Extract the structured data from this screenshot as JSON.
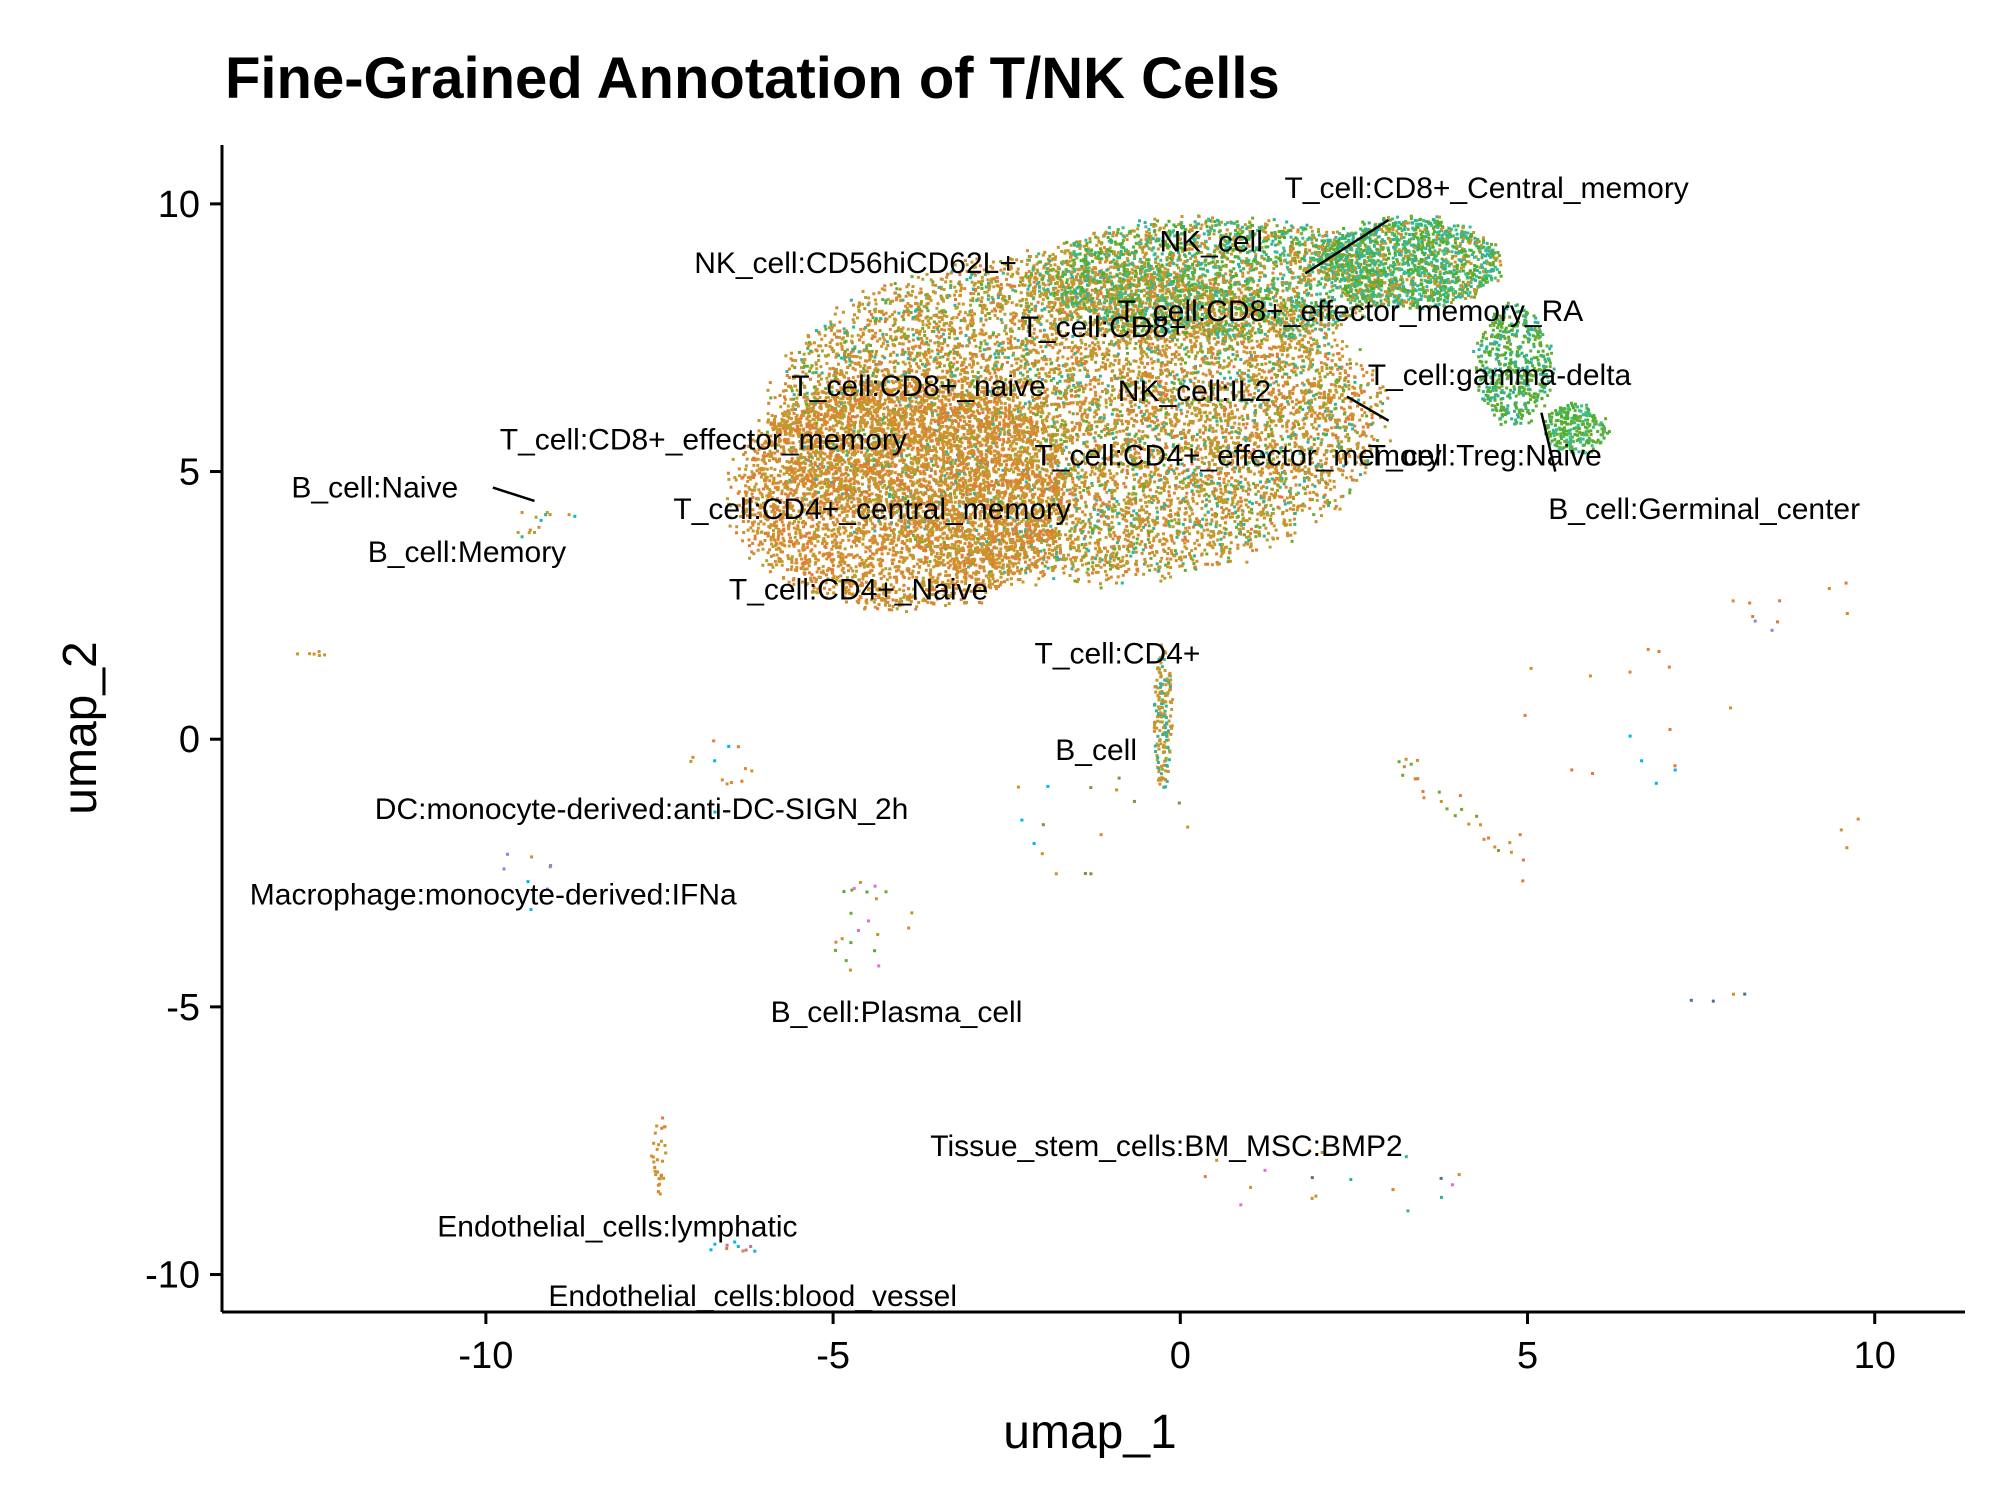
{
  "chart_data": {
    "type": "scatter",
    "title": "Fine-Grained Annotation of T/NK Cells",
    "xlabel": "umap_1",
    "ylabel": "umap_2",
    "xlim": [
      -13.8,
      11.3
    ],
    "ylim": [
      -10.7,
      11.1
    ],
    "x_ticks": [
      -10,
      -5,
      0,
      5,
      10
    ],
    "y_ticks": [
      -10,
      -5,
      0,
      5,
      10
    ],
    "grid": false,
    "legend": "none",
    "palette": [
      "#d98a2b",
      "#c9962a",
      "#b8a02e",
      "#e07b39",
      "#2fb39a",
      "#3bbf8a",
      "#6aab2f",
      "#4daf2c",
      "#00b7e8",
      "#7b8be8",
      "#e86ad6",
      "#d46a9a",
      "#8c8c3a",
      "#4f6f8f"
    ],
    "labels": [
      {
        "text": "T_cell:CD8+_Central_memory",
        "x": 1.5,
        "y": 10.3
      },
      {
        "text": "NK_cell",
        "x": -0.3,
        "y": 9.3
      },
      {
        "text": "NK_cell:CD56hiCD62L+",
        "x": -7.0,
        "y": 8.9
      },
      {
        "text": "T_cell:CD8+_effector_memory_RA",
        "x": -0.9,
        "y": 8.0
      },
      {
        "text": "T_cell:CD8+",
        "x": -2.3,
        "y": 7.7
      },
      {
        "text": "T_cell:gamma-delta",
        "x": 2.7,
        "y": 6.8
      },
      {
        "text": "T_cell:CD8+_naive",
        "x": -5.6,
        "y": 6.6
      },
      {
        "text": "NK_cell:IL2",
        "x": -0.9,
        "y": 6.5
      },
      {
        "text": "T_cell:CD8+_effector_memory",
        "x": -9.8,
        "y": 5.6
      },
      {
        "text": "T_cell:CD4+_effector_memory",
        "x": -2.1,
        "y": 5.3
      },
      {
        "text": "T_cell:Treg:Naive",
        "x": 2.7,
        "y": 5.3
      },
      {
        "text": "B_cell:Naive",
        "x": -12.8,
        "y": 4.7
      },
      {
        "text": "T_cell:CD4+_central_memory",
        "x": -7.3,
        "y": 4.3
      },
      {
        "text": "B_cell:Germinal_center",
        "x": 5.3,
        "y": 4.3
      },
      {
        "text": "B_cell:Memory",
        "x": -11.7,
        "y": 3.5
      },
      {
        "text": "T_cell:CD4+_Naive",
        "x": -6.5,
        "y": 2.8
      },
      {
        "text": "T_cell:CD4+",
        "x": -2.1,
        "y": 1.6
      },
      {
        "text": "B_cell",
        "x": -1.8,
        "y": -0.2
      },
      {
        "text": "DC:monocyte-derived:anti-DC-SIGN_2h",
        "x": -11.6,
        "y": -1.3
      },
      {
        "text": "Macrophage:monocyte-derived:IFNa",
        "x": -13.4,
        "y": -2.9
      },
      {
        "text": "B_cell:Plasma_cell",
        "x": -5.9,
        "y": -5.1
      },
      {
        "text": "Tissue_stem_cells:BM_MSC:BMP2",
        "x": -3.6,
        "y": -7.6
      },
      {
        "text": "Endothelial_cells:lymphatic",
        "x": -10.7,
        "y": -9.1
      },
      {
        "text": "Endothelial_cells:blood_vessel",
        "x": -9.1,
        "y": -10.4
      }
    ],
    "leaders": [
      [
        1.8,
        8.7,
        3.0,
        9.7
      ],
      [
        -9.9,
        4.7,
        -9.3,
        4.45
      ],
      [
        2.4,
        6.4,
        3.0,
        5.95
      ],
      [
        5.2,
        6.1,
        5.4,
        5.0
      ]
    ],
    "clusters": [
      {
        "name": "main_body",
        "type": "ellipse",
        "cx": -1.5,
        "cy": 6.0,
        "rx": 4.6,
        "ry": 3.2,
        "n": 9000,
        "colors": [
          0,
          1,
          2,
          3,
          1,
          0,
          2,
          4,
          6
        ]
      },
      {
        "name": "main_left",
        "type": "ellipse",
        "cx": -4.0,
        "cy": 4.6,
        "rx": 2.6,
        "ry": 2.3,
        "n": 4000,
        "colors": [
          0,
          3,
          1,
          0,
          2
        ]
      },
      {
        "name": "main_top",
        "type": "ellipse",
        "cx": 0.5,
        "cy": 8.6,
        "rx": 2.8,
        "ry": 1.2,
        "n": 2600,
        "colors": [
          4,
          5,
          6,
          1,
          0,
          2,
          7
        ]
      },
      {
        "name": "upper_right_arm",
        "type": "ellipse",
        "cx": 3.3,
        "cy": 8.9,
        "rx": 1.4,
        "ry": 0.9,
        "n": 1400,
        "colors": [
          6,
          7,
          5,
          4,
          1
        ]
      },
      {
        "name": "arm_down",
        "type": "ellipse",
        "cx": 4.8,
        "cy": 7.0,
        "rx": 0.6,
        "ry": 1.2,
        "n": 500,
        "colors": [
          6,
          7,
          4
        ]
      },
      {
        "name": "arm_tip",
        "type": "ellipse",
        "cx": 5.7,
        "cy": 5.8,
        "rx": 0.5,
        "ry": 0.5,
        "n": 260,
        "colors": [
          7,
          6,
          5
        ]
      },
      {
        "name": "stalk",
        "type": "ellipse",
        "cx": -0.25,
        "cy": 0.4,
        "rx": 0.15,
        "ry": 1.4,
        "n": 180,
        "colors": [
          0,
          1,
          2,
          4
        ]
      },
      {
        "name": "bcell_naive",
        "type": "ellipse",
        "cx": -9.2,
        "cy": 4.0,
        "rx": 0.6,
        "ry": 0.3,
        "n": 14,
        "colors": [
          8,
          0,
          4,
          2
        ]
      },
      {
        "name": "left_far",
        "type": "ellipse",
        "cx": -12.5,
        "cy": 1.6,
        "rx": 0.3,
        "ry": 0.05,
        "n": 6,
        "colors": [
          0,
          1
        ]
      },
      {
        "name": "lower_left_chain",
        "type": "ellipse",
        "cx": -6.6,
        "cy": -0.6,
        "rx": 0.6,
        "ry": 0.9,
        "n": 14,
        "colors": [
          8,
          0,
          1,
          3
        ]
      },
      {
        "name": "macrophage",
        "type": "ellipse",
        "cx": -9.2,
        "cy": -2.5,
        "rx": 0.6,
        "ry": 0.8,
        "n": 8,
        "colors": [
          9,
          8,
          0
        ]
      },
      {
        "name": "plasma",
        "type": "ellipse",
        "cx": -4.6,
        "cy": -3.5,
        "rx": 0.8,
        "ry": 0.9,
        "n": 22,
        "colors": [
          7,
          0,
          10,
          1,
          6
        ]
      },
      {
        "name": "endo_lymph",
        "type": "ellipse",
        "cx": -7.5,
        "cy": -7.8,
        "rx": 0.12,
        "ry": 0.9,
        "n": 30,
        "colors": [
          0,
          1,
          3
        ]
      },
      {
        "name": "endo_blood",
        "type": "ellipse",
        "cx": -6.4,
        "cy": -9.5,
        "rx": 0.4,
        "ry": 0.15,
        "n": 10,
        "colors": [
          3,
          0,
          8,
          11
        ]
      },
      {
        "name": "center_scatter",
        "type": "ellipse",
        "cx": -1.0,
        "cy": -1.5,
        "rx": 1.8,
        "ry": 1.2,
        "n": 16,
        "colors": [
          0,
          8,
          1,
          12
        ]
      },
      {
        "name": "right_diag",
        "type": "line",
        "x1": 3.0,
        "y1": -0.3,
        "x2": 5.2,
        "y2": -2.5,
        "jitter": 0.15,
        "n": 28,
        "colors": [
          0,
          3,
          1,
          6
        ]
      },
      {
        "name": "right_mid",
        "type": "ellipse",
        "cx": 6.5,
        "cy": 0.5,
        "rx": 1.8,
        "ry": 1.6,
        "n": 16,
        "colors": [
          0,
          1,
          8,
          3
        ]
      },
      {
        "name": "right_far",
        "type": "ellipse",
        "cx": 8.8,
        "cy": 2.6,
        "rx": 1.0,
        "ry": 0.8,
        "n": 10,
        "colors": [
          0,
          3,
          9
        ]
      },
      {
        "name": "right_low",
        "type": "ellipse",
        "cx": 7.5,
        "cy": -5.0,
        "rx": 0.8,
        "ry": 0.4,
        "n": 4,
        "colors": [
          0,
          13
        ]
      },
      {
        "name": "stem_cells",
        "type": "ellipse",
        "cx": 2.5,
        "cy": -8.4,
        "rx": 2.8,
        "ry": 0.8,
        "n": 18,
        "colors": [
          0,
          1,
          3,
          10,
          4,
          13
        ]
      },
      {
        "name": "far_right_mid",
        "type": "ellipse",
        "cx": 9.5,
        "cy": -1.5,
        "rx": 0.6,
        "ry": 1.5,
        "n": 3,
        "colors": [
          0,
          1
        ]
      }
    ]
  }
}
